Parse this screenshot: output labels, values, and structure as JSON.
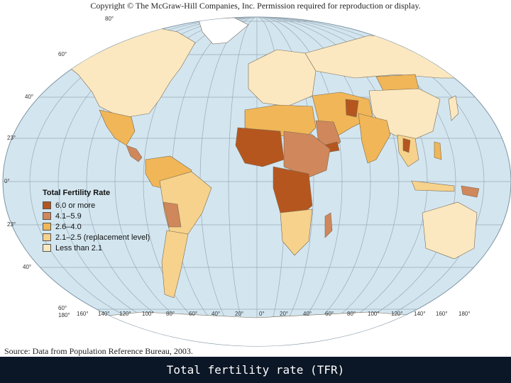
{
  "header": {
    "copyright": "Copyright © The McGraw-Hill Companies, Inc.  Permission required for reproduction or display."
  },
  "legend": {
    "title": "Total Fertility Rate",
    "items": [
      {
        "label": "6.0 or more",
        "color": "#b5561f"
      },
      {
        "label": "4.1–5.9",
        "color": "#d0875b"
      },
      {
        "label": "2.6–4.0",
        "color": "#f0b657"
      },
      {
        "label": "2.1–2.5 (replacement level)",
        "color": "#f6d28c"
      },
      {
        "label": "Less than 2.1",
        "color": "#fbe8c0"
      }
    ]
  },
  "latitude_labels": [
    "80°",
    "60°",
    "40°",
    "23°",
    "0°",
    "23°",
    "40°",
    "60°"
  ],
  "longitude_labels": [
    "180°",
    "160°",
    "140°",
    "120°",
    "100°",
    "80°",
    "60°",
    "40°",
    "20°",
    "0°",
    "20°",
    "40°",
    "60°",
    "80°",
    "100°",
    "120°",
    "140°",
    "160°",
    "180°"
  ],
  "footer": {
    "source": "Source: Data from Population Reference Bureau, 2003."
  },
  "caption": "Total fertility rate (TFR)",
  "colors": {
    "ocean": "#d3e6f0",
    "grid": "#9aa9b4",
    "ice": "#ffffff",
    "caption_bar": "#0b1626"
  }
}
